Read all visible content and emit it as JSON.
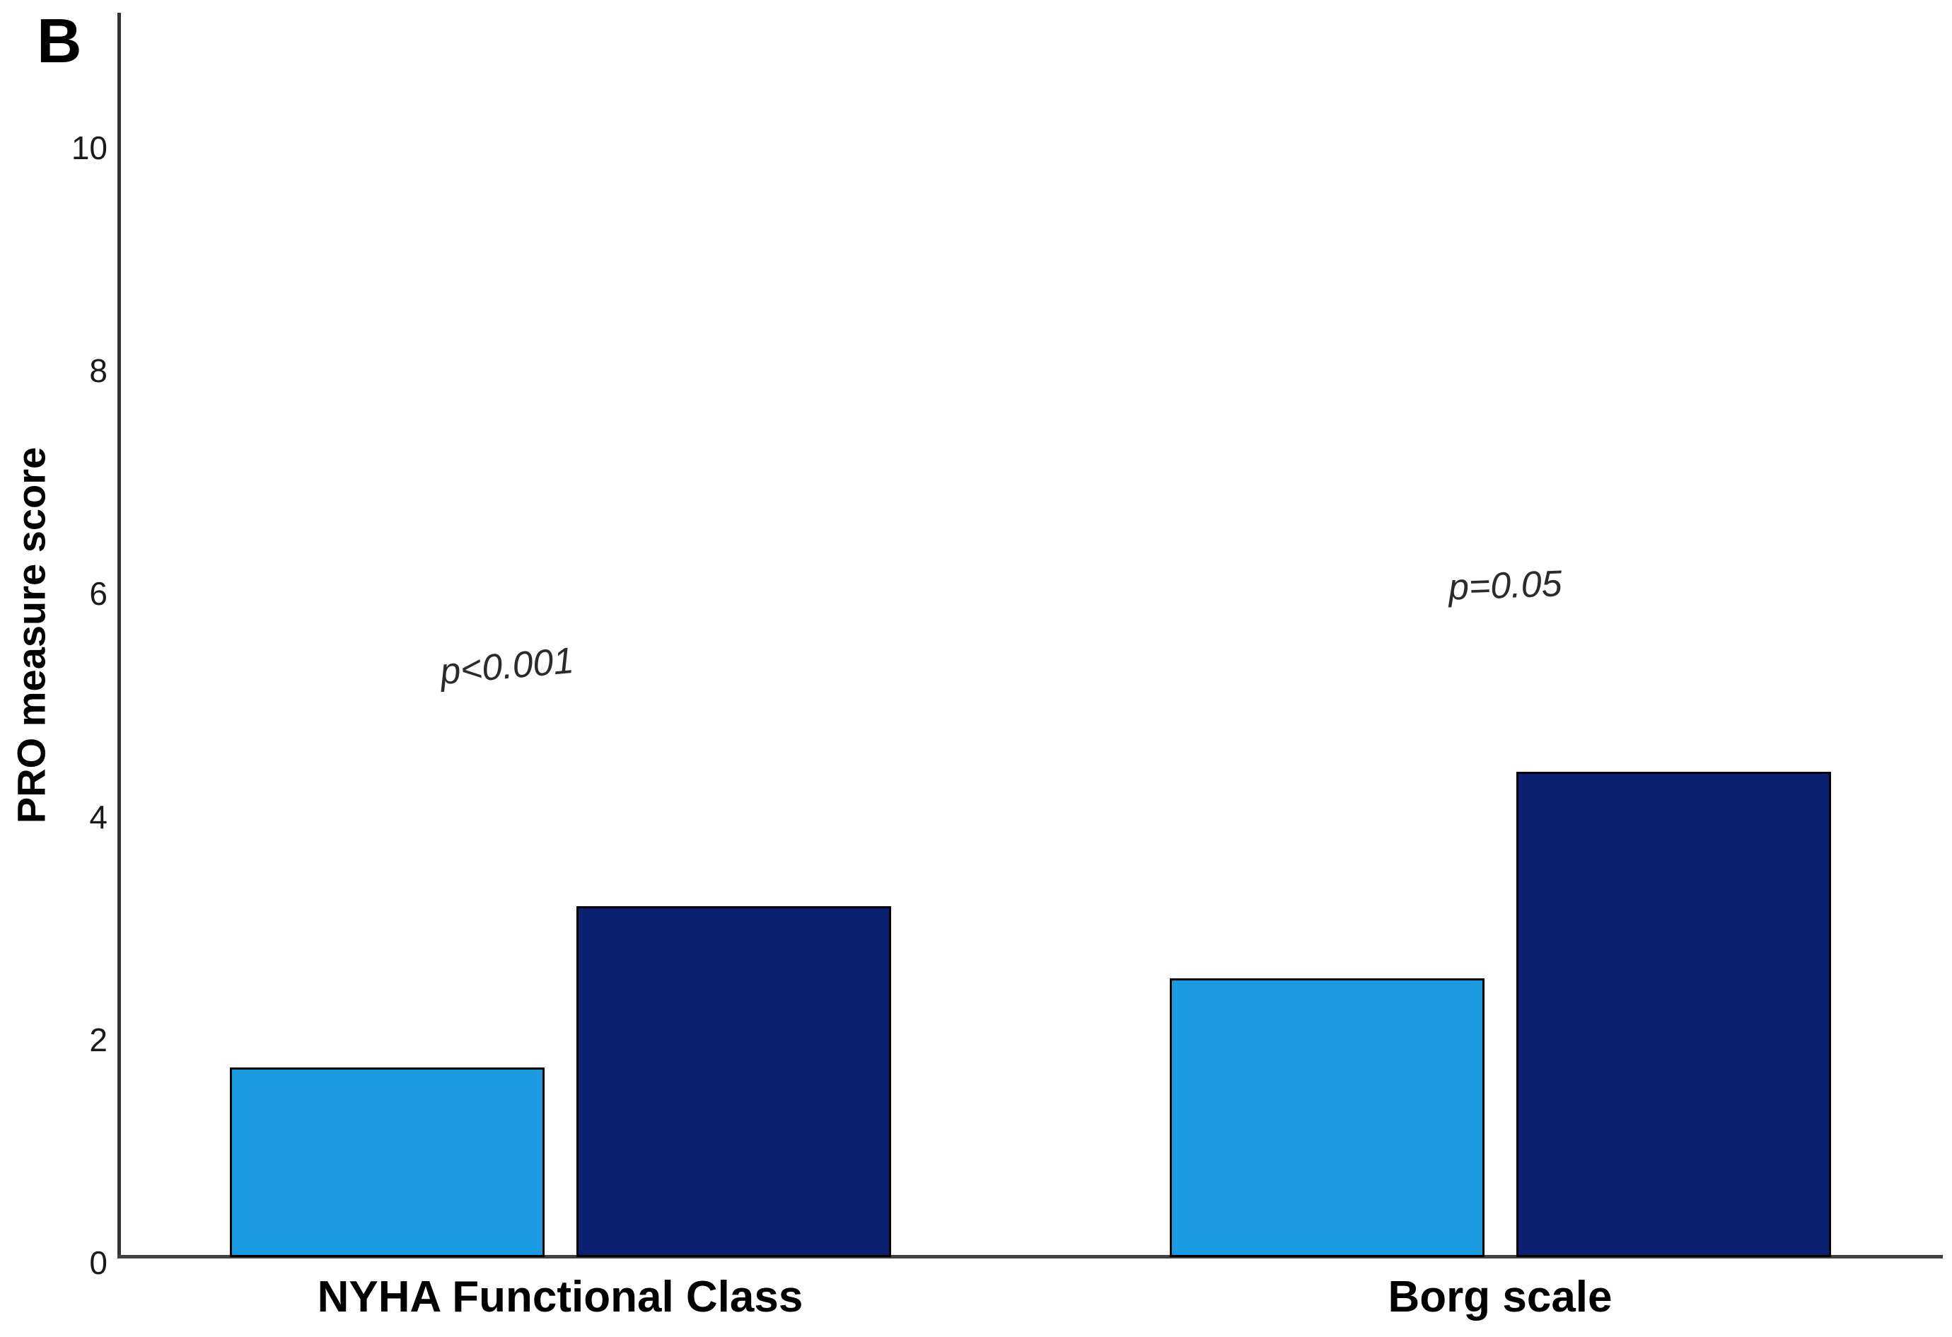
{
  "panel_label": "B",
  "chart_data": {
    "type": "bar",
    "title": "",
    "xlabel": "",
    "ylabel": "PRO measure score",
    "ylim": [
      0,
      10
    ],
    "yticks": [
      0,
      2,
      4,
      6,
      8,
      10
    ],
    "grid": false,
    "legend": "none",
    "categories": [
      "NYHA Functional Class",
      "Borg scale"
    ],
    "series": [
      {
        "name": "baseline-light-blue",
        "color": "#1B9AE4",
        "values": [
          1.7,
          2.5
        ]
      },
      {
        "name": "followup-dark-navy",
        "color": "#0B2070",
        "values": [
          3.15,
          4.35
        ]
      }
    ],
    "bar_border_color": "#000000",
    "annotations": [
      {
        "text": "p<0.001",
        "category": "NYHA Functional Class"
      },
      {
        "text": "p=0.05",
        "category": "Borg scale"
      }
    ]
  }
}
